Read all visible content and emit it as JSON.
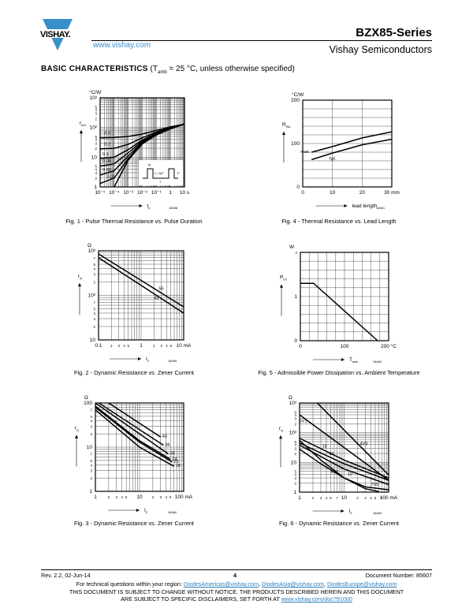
{
  "header": {
    "logo_text": "VISHAY.",
    "website": "www.vishay.com",
    "series_title": "BZX85-Series",
    "company": "Vishay Semiconductors",
    "brand_color": "#3a8fc8"
  },
  "section": {
    "title": "BASIC CHARACTERISTICS",
    "condition_open": "(T",
    "condition_sub": "amb",
    "condition_rest": " = 25 °C, unless otherwise specified)"
  },
  "chart_data": [
    {
      "id": "fig1",
      "type": "line",
      "title": "Fig. 1 - Pulse Thermal Resistance vs. Pulse Duration",
      "unit_y": "°C/W",
      "ylabel": "r",
      "ylabel_sub": "thA",
      "xlabel": "t",
      "xlabel_sub": "p",
      "figure_code": "18458",
      "x_scale": "log",
      "xlim": [
        1e-05,
        10
      ],
      "y_scale": "log",
      "ylim": [
        1,
        1000
      ],
      "grid": true,
      "x_ticks": [
        [
          1e-05,
          "10⁻⁵"
        ],
        [
          0.0001,
          "10⁻⁴"
        ],
        [
          0.001,
          "10⁻³"
        ],
        [
          0.01,
          "10⁻²"
        ],
        [
          0.1,
          "10⁻¹"
        ],
        [
          1,
          "1"
        ],
        [
          10,
          "10 s"
        ]
      ],
      "y_ticks": [
        [
          1,
          "1"
        ],
        [
          2,
          "2"
        ],
        [
          3,
          "3"
        ],
        [
          4,
          "4"
        ],
        [
          5,
          "5"
        ],
        [
          10,
          "10"
        ],
        [
          20,
          "2"
        ],
        [
          30,
          "3"
        ],
        [
          40,
          "4"
        ],
        [
          50,
          "5"
        ],
        [
          100,
          "10²"
        ],
        [
          200,
          "2"
        ],
        [
          300,
          "3"
        ],
        [
          400,
          "4"
        ],
        [
          500,
          "5"
        ],
        [
          1000,
          "10³"
        ]
      ],
      "inset": {
        "tp": "tp",
        "v": "v = tp/T",
        "T": "T",
        "P": "P"
      },
      "series": [
        {
          "name": "0.5",
          "label_x": 2e-05,
          "x": [
            1e-05,
            0.0001,
            0.001,
            0.01,
            0.1,
            1,
            10
          ],
          "y": [
            45,
            46,
            50,
            60,
            80,
            105,
            130
          ]
        },
        {
          "name": "0.2",
          "label_x": 2e-05,
          "x": [
            1e-05,
            0.0001,
            0.001,
            0.01,
            0.1,
            1,
            10
          ],
          "y": [
            19,
            20,
            27,
            45,
            70,
            100,
            130
          ]
        },
        {
          "name": "0.1",
          "label_x": 1.5e-05,
          "x": [
            1e-05,
            0.0001,
            0.001,
            0.01,
            0.1,
            1,
            10
          ],
          "y": [
            9,
            10,
            18,
            38,
            65,
            97,
            130
          ]
        },
        {
          "name": "0.05",
          "label_x": 1.5e-05,
          "x": [
            1e-05,
            0.0001,
            0.001,
            0.01,
            0.1,
            1,
            10
          ],
          "y": [
            5,
            6,
            14,
            35,
            62,
            95,
            130
          ]
        },
        {
          "name": "0.02",
          "label_x": 1.5e-05,
          "x": [
            1e-05,
            0.0001,
            0.001,
            0.01,
            0.1,
            1,
            10
          ],
          "y": [
            2.5,
            3.5,
            11,
            32,
            60,
            93,
            130
          ]
        },
        {
          "name": "0.01",
          "label_x": 3e-05,
          "x": [
            1e-05,
            0.0001,
            0.001,
            0.01,
            0.1,
            1,
            10
          ],
          "y": [
            1.3,
            2,
            9,
            30,
            58,
            92,
            130
          ]
        },
        {
          "name": "",
          "x": [
            0.0001,
            0.001,
            0.01,
            0.1,
            1,
            10
          ],
          "y": [
            1,
            8,
            28,
            56,
            90,
            130
          ]
        }
      ]
    },
    {
      "id": "fig4",
      "type": "line",
      "title": "Fig. 4 - Thermal Resistance vs. Lead Length",
      "unit_y": "°C/W",
      "ylabel": "R",
      "ylabel_sub": "thA",
      "xlabel": "lead length",
      "xlabel_sub": "",
      "figure_code": "18461",
      "x_scale": "linear",
      "xlim": [
        0,
        30
      ],
      "y_scale": "linear",
      "ylim": [
        0,
        200
      ],
      "grid": true,
      "x_ticks": [
        [
          0,
          "0"
        ],
        [
          10,
          "10"
        ],
        [
          20,
          "20"
        ],
        [
          30,
          "30 mm"
        ]
      ],
      "y_ticks": [
        [
          0,
          "0"
        ],
        [
          100,
          "100"
        ],
        [
          200,
          "200"
        ]
      ],
      "series": [
        {
          "name": "max.",
          "label_x": 3,
          "label_side": "left",
          "x": [
            3,
            10,
            20,
            30
          ],
          "y": [
            80,
            93,
            113,
            127
          ]
        },
        {
          "name": "typ.",
          "label_x": 9,
          "label_side": "below",
          "x": [
            3,
            10,
            20,
            30
          ],
          "y": [
            63,
            78,
            97,
            110
          ]
        }
      ]
    },
    {
      "id": "fig2",
      "type": "line",
      "title": "Fig. 2 - Dynamic Resistance vs. Zener Current",
      "unit_y": "Ω",
      "ylabel": "r",
      "ylabel_sub": "zj",
      "xlabel": "I",
      "xlabel_sub": "Z",
      "figure_code": "18459",
      "x_scale": "log",
      "xlim": [
        0.1,
        10
      ],
      "y_scale": "log",
      "ylim": [
        10,
        1000
      ],
      "grid": true,
      "x_ticks": [
        [
          0.1,
          "0.1"
        ],
        [
          0.2,
          "2"
        ],
        [
          0.3,
          "3"
        ],
        [
          0.4,
          "4"
        ],
        [
          0.5,
          "5"
        ],
        [
          1,
          "1"
        ],
        [
          2,
          "2"
        ],
        [
          3,
          "3"
        ],
        [
          4,
          "4"
        ],
        [
          5,
          "5"
        ],
        [
          10,
          "10 mA"
        ]
      ],
      "y_ticks": [
        [
          10,
          "10"
        ],
        [
          20,
          "2"
        ],
        [
          30,
          "3"
        ],
        [
          40,
          "4"
        ],
        [
          50,
          "5"
        ],
        [
          70,
          "7"
        ],
        [
          100,
          "10²"
        ],
        [
          200,
          "2"
        ],
        [
          300,
          "3"
        ],
        [
          400,
          "4"
        ],
        [
          500,
          "5"
        ],
        [
          700,
          "7"
        ],
        [
          1000,
          "10³"
        ]
      ],
      "series": [
        {
          "name": "56",
          "label_x": 2.6,
          "label_side": "above",
          "x": [
            0.1,
            10
          ],
          "y": [
            850,
            55
          ]
        },
        {
          "name": "43",
          "label_x": 2.0,
          "label_side": "below",
          "x": [
            0.1,
            10
          ],
          "y": [
            700,
            40
          ]
        }
      ]
    },
    {
      "id": "fig5",
      "type": "line",
      "title": "Fig. 5 - Admissible Power Dissipation vs. Ambient Temperature",
      "unit_y": "W",
      "ylabel": "P",
      "ylabel_sub": "tot",
      "xlabel": "T",
      "xlabel_sub": "amb",
      "figure_code": "18462",
      "x_scale": "linear",
      "xlim": [
        0,
        200
      ],
      "y_scale": "linear",
      "ylim": [
        0,
        2
      ],
      "grid": true,
      "x_ticks": [
        [
          0,
          "0"
        ],
        [
          100,
          "100"
        ],
        [
          200,
          "200 °C"
        ]
      ],
      "y_ticks": [
        [
          0,
          "0"
        ],
        [
          1,
          "1"
        ],
        [
          2,
          "2"
        ]
      ],
      "series": [
        {
          "name": "",
          "x": [
            0,
            30,
            175
          ],
          "y": [
            1.3,
            1.3,
            0
          ]
        }
      ]
    },
    {
      "id": "fig3",
      "type": "line",
      "title": "Fig. 3 - Dynamic Resistance vs. Zener Current",
      "unit_y": "Ω",
      "ylabel": "r",
      "ylabel_sub": "zj",
      "xlabel": "I",
      "xlabel_sub": "Z",
      "figure_code": "18460",
      "x_scale": "log",
      "xlim": [
        1,
        100
      ],
      "y_scale": "log",
      "ylim": [
        1,
        100
      ],
      "grid": true,
      "x_ticks": [
        [
          1,
          "1"
        ],
        [
          2,
          "2"
        ],
        [
          3,
          "3"
        ],
        [
          4,
          "4"
        ],
        [
          5,
          "5"
        ],
        [
          10,
          "10"
        ],
        [
          20,
          "2"
        ],
        [
          30,
          "3"
        ],
        [
          40,
          "4"
        ],
        [
          50,
          "5"
        ],
        [
          100,
          "100 mA"
        ]
      ],
      "y_ticks": [
        [
          1,
          "1"
        ],
        [
          2,
          "2"
        ],
        [
          3,
          "3"
        ],
        [
          4,
          "4"
        ],
        [
          5,
          "5"
        ],
        [
          7,
          "7"
        ],
        [
          10,
          "10"
        ],
        [
          20,
          "2"
        ],
        [
          30,
          "3"
        ],
        [
          40,
          "4"
        ],
        [
          50,
          "5"
        ],
        [
          70,
          "7"
        ],
        [
          100,
          "100"
        ]
      ],
      "series": [
        {
          "name": "43",
          "label_side": "end",
          "x": [
            2,
            30
          ],
          "y": [
            100,
            17
          ]
        },
        {
          "name": "36",
          "label_side": "end",
          "x": [
            1.2,
            35
          ],
          "y": [
            100,
            11
          ]
        },
        {
          "name": "30",
          "label_side": "end",
          "x": [
            1,
            10,
            45
          ],
          "y": [
            100,
            20,
            7
          ]
        },
        {
          "name": "24",
          "label_side": "end",
          "x": [
            1,
            10,
            50
          ],
          "y": [
            85,
            14,
            5.3
          ]
        },
        {
          "name": "22",
          "label_side": "end",
          "x": [
            1,
            10,
            55
          ],
          "y": [
            80,
            13,
            4.6
          ]
        },
        {
          "name": "18",
          "label_side": "end",
          "x": [
            1,
            10,
            60
          ],
          "y": [
            70,
            10,
            3.7
          ]
        }
      ]
    },
    {
      "id": "fig6",
      "type": "line",
      "title": "Fig. 6 - Dynamic Resistance vs. Zener Current",
      "unit_y": "Ω",
      "ylabel": "r",
      "ylabel_sub": "zj",
      "xlabel": "I",
      "xlabel_sub": "Z",
      "figure_code": "18463",
      "x_scale": "log",
      "xlim": [
        1,
        100
      ],
      "y_scale": "log",
      "ylim": [
        1,
        1000
      ],
      "grid": true,
      "x_ticks": [
        [
          1,
          "1"
        ],
        [
          2,
          "2"
        ],
        [
          3,
          "3"
        ],
        [
          4,
          "4"
        ],
        [
          5,
          "5"
        ],
        [
          7,
          "7"
        ],
        [
          10,
          "10"
        ],
        [
          20,
          "2"
        ],
        [
          30,
          "3"
        ],
        [
          40,
          "4"
        ],
        [
          50,
          "5"
        ],
        [
          70,
          "7"
        ],
        [
          100,
          "100 mA"
        ]
      ],
      "y_ticks": [
        [
          1,
          "1"
        ],
        [
          2,
          "2"
        ],
        [
          3,
          "3"
        ],
        [
          4,
          "4"
        ],
        [
          5,
          "5"
        ],
        [
          10,
          "10"
        ],
        [
          20,
          "2"
        ],
        [
          30,
          "3"
        ],
        [
          40,
          "4"
        ],
        [
          50,
          "5"
        ],
        [
          100,
          "10²"
        ],
        [
          200,
          "2"
        ],
        [
          300,
          "3"
        ],
        [
          400,
          "4"
        ],
        [
          500,
          "5"
        ],
        [
          1000,
          "10³"
        ]
      ],
      "series": [
        {
          "name": "4V3",
          "label_x": 20,
          "label_side": "right",
          "x": [
            2.5,
            100
          ],
          "y": [
            1000,
            3.8
          ]
        },
        {
          "name": "5V1",
          "label_x": 1.6,
          "label_side": "left",
          "x": [
            1,
            100
          ],
          "y": [
            400,
            2.5
          ]
        },
        {
          "name": "18",
          "label_x": 3.2,
          "label_side": "above",
          "x": [
            1,
            10,
            100
          ],
          "y": [
            65,
            12,
            3
          ]
        },
        {
          "name": "12",
          "label_x": 4.5,
          "label_side": "above",
          "x": [
            1,
            10,
            100
          ],
          "y": [
            45,
            9,
            2.5
          ]
        },
        {
          "name": "10",
          "label_x": 12,
          "label_side": "below",
          "x": [
            1,
            10,
            100
          ],
          "y": [
            38,
            6,
            1.8
          ]
        },
        {
          "name": "7V5",
          "label_x": 40,
          "label_side": "above",
          "x": [
            1,
            3,
            10,
            30,
            100
          ],
          "y": [
            28,
            9,
            3,
            1.5,
            1.2
          ]
        },
        {
          "name": "6V2",
          "label_x": 5,
          "label_side": "below",
          "x": [
            1,
            3,
            10,
            30,
            60
          ],
          "y": [
            55,
            12,
            3,
            1.3,
            1.05
          ]
        }
      ]
    }
  ],
  "footer": {
    "revision": "Rev. 2.2, 02-Jun-14",
    "page_number": "4",
    "document_number": "Document Number: 85607",
    "tech_questions": "For technical questions within your region: ",
    "email_americas": "DiodesAmericas@vishay.com",
    "email_asia": "DiodesAsia@vishay.com",
    "email_europe": "DiodesEurope@vishay.com",
    "sep": ", ",
    "disclaimer_line1": "THIS DOCUMENT IS SUBJECT TO CHANGE WITHOUT NOTICE. THE PRODUCTS DESCRIBED HEREIN AND THIS DOCUMENT",
    "disclaimer_line2": "ARE SUBJECT TO SPECIFIC DISCLAIMERS, SET FORTH AT ",
    "disclaimer_link": "www.vishay.com/doc?91000"
  }
}
